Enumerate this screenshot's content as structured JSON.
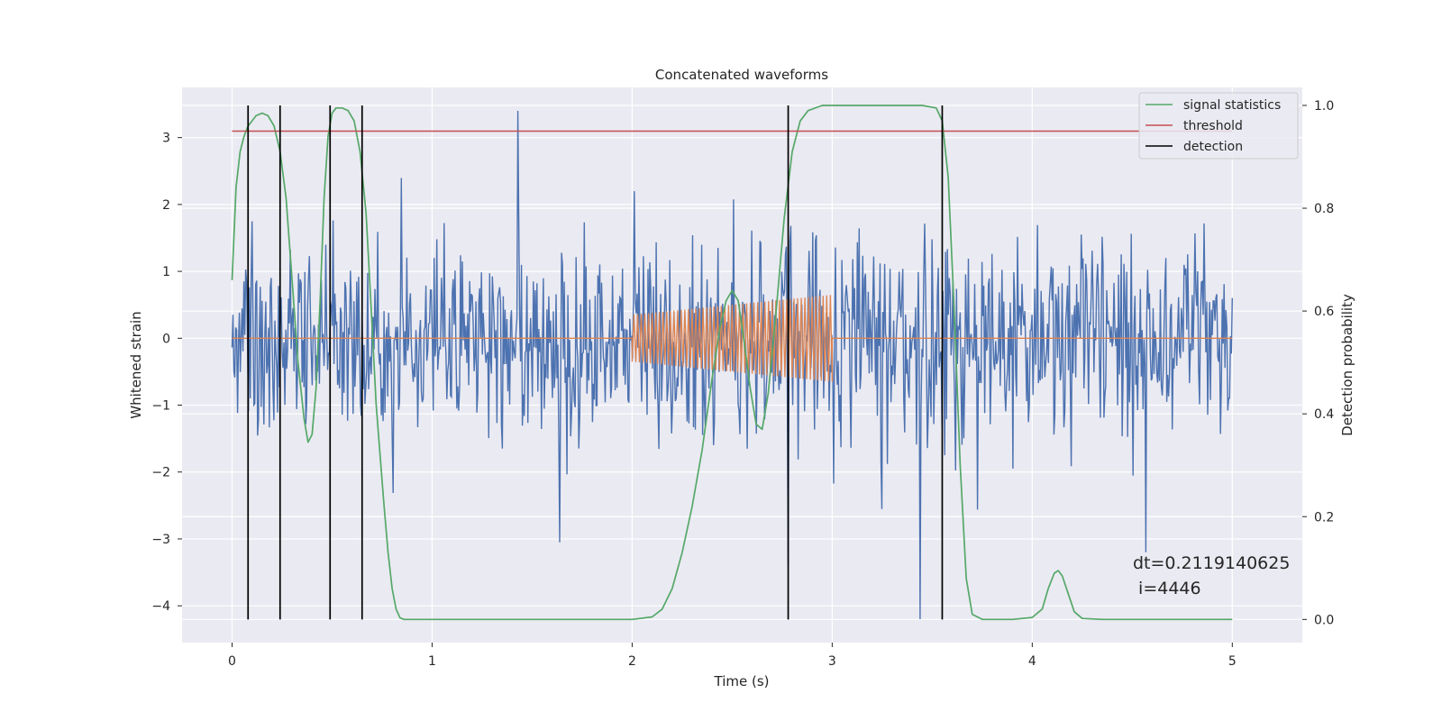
{
  "chart_data": {
    "type": "line",
    "title": "Concatenated waveforms",
    "xlabel": "Time (s)",
    "ylabel": "Whitened strain",
    "y2label": "Detection probability",
    "xlim": [
      -0.25,
      5.35
    ],
    "ylim": [
      -4.55,
      3.75
    ],
    "y2lim": [
      -0.045,
      1.035
    ],
    "xticks": [
      0,
      1,
      2,
      3,
      4,
      5
    ],
    "xtick_labels": [
      "0",
      "1",
      "2",
      "3",
      "4",
      "5"
    ],
    "yticks": [
      -4,
      -3,
      -2,
      -1,
      0,
      1,
      2,
      3
    ],
    "ytick_labels": [
      "−4",
      "−3",
      "−2",
      "−1",
      "0",
      "1",
      "2",
      "3"
    ],
    "y2ticks": [
      0.0,
      0.2,
      0.4,
      0.6,
      0.8,
      1.0
    ],
    "y2tick_labels": [
      "0.0",
      "0.2",
      "0.4",
      "0.6",
      "0.8",
      "1.0"
    ],
    "grid": true,
    "legend_position": "top-right",
    "colors": {
      "strain": "#4c72b0",
      "injection": "#dd8452",
      "statistics": "#55a868",
      "threshold": "#c44e52",
      "detection": "#000000",
      "plot_bg": "#eaeaf2",
      "grid": "#ffffff"
    },
    "strain_noise": {
      "t_range": [
        0,
        5
      ],
      "sigma": 0.75,
      "samples_shown": 1100,
      "note_spikes": [
        [
          1.43,
          3.4
        ],
        [
          3.44,
          -4.2
        ],
        [
          2.78,
          -3.4
        ],
        [
          4.57,
          -3.2
        ],
        [
          1.64,
          -3.05
        ]
      ]
    },
    "injection": {
      "t_start": 2.0,
      "t_end": 3.0,
      "amplitude_start": 0.35,
      "amplitude_end": 0.65,
      "cycles": 55
    },
    "signal_statistics": {
      "axis": "right",
      "x": [
        0.0,
        0.02,
        0.04,
        0.06,
        0.08,
        0.1,
        0.12,
        0.15,
        0.18,
        0.21,
        0.24,
        0.27,
        0.3,
        0.33,
        0.36,
        0.38,
        0.4,
        0.42,
        0.44,
        0.46,
        0.48,
        0.5,
        0.52,
        0.55,
        0.58,
        0.61,
        0.64,
        0.67,
        0.7,
        0.72,
        0.74,
        0.76,
        0.78,
        0.8,
        0.82,
        0.84,
        0.86,
        0.9,
        1.0,
        1.5,
        2.0,
        2.1,
        2.15,
        2.2,
        2.25,
        2.3,
        2.35,
        2.4,
        2.44,
        2.47,
        2.5,
        2.53,
        2.56,
        2.59,
        2.62,
        2.65,
        2.68,
        2.72,
        2.76,
        2.8,
        2.84,
        2.88,
        2.95,
        3.1,
        3.3,
        3.45,
        3.52,
        3.55,
        3.58,
        3.61,
        3.64,
        3.67,
        3.7,
        3.75,
        3.9,
        4.0,
        4.05,
        4.08,
        4.11,
        4.13,
        4.15,
        4.18,
        4.21,
        4.25,
        4.35,
        5.0
      ],
      "y": [
        0.66,
        0.84,
        0.91,
        0.94,
        0.96,
        0.97,
        0.98,
        0.985,
        0.98,
        0.96,
        0.91,
        0.82,
        0.66,
        0.5,
        0.39,
        0.345,
        0.36,
        0.45,
        0.62,
        0.82,
        0.94,
        0.985,
        0.995,
        0.995,
        0.99,
        0.97,
        0.91,
        0.79,
        0.57,
        0.42,
        0.32,
        0.22,
        0.13,
        0.06,
        0.02,
        0.003,
        0.0,
        0.0,
        0.0,
        0.0,
        0.0,
        0.005,
        0.02,
        0.06,
        0.13,
        0.22,
        0.33,
        0.47,
        0.57,
        0.62,
        0.64,
        0.62,
        0.54,
        0.45,
        0.38,
        0.37,
        0.44,
        0.6,
        0.78,
        0.91,
        0.97,
        0.99,
        1.0,
        1.0,
        1.0,
        1.0,
        0.995,
        0.97,
        0.86,
        0.6,
        0.3,
        0.08,
        0.01,
        0.0,
        0.0,
        0.004,
        0.02,
        0.06,
        0.09,
        0.095,
        0.085,
        0.05,
        0.015,
        0.002,
        0.0,
        0.0
      ]
    },
    "threshold": {
      "axis": "right",
      "value": 0.95,
      "x": [
        0,
        5
      ]
    },
    "detections": [
      0.08,
      0.24,
      0.49,
      0.65,
      2.78,
      3.55
    ],
    "legend": [
      "signal statistics",
      "threshold",
      "detection"
    ],
    "annotation": {
      "line1": "dt=0.2119140625",
      "line2": " i=4446",
      "x": 4.5,
      "y_right": 0.07
    }
  }
}
